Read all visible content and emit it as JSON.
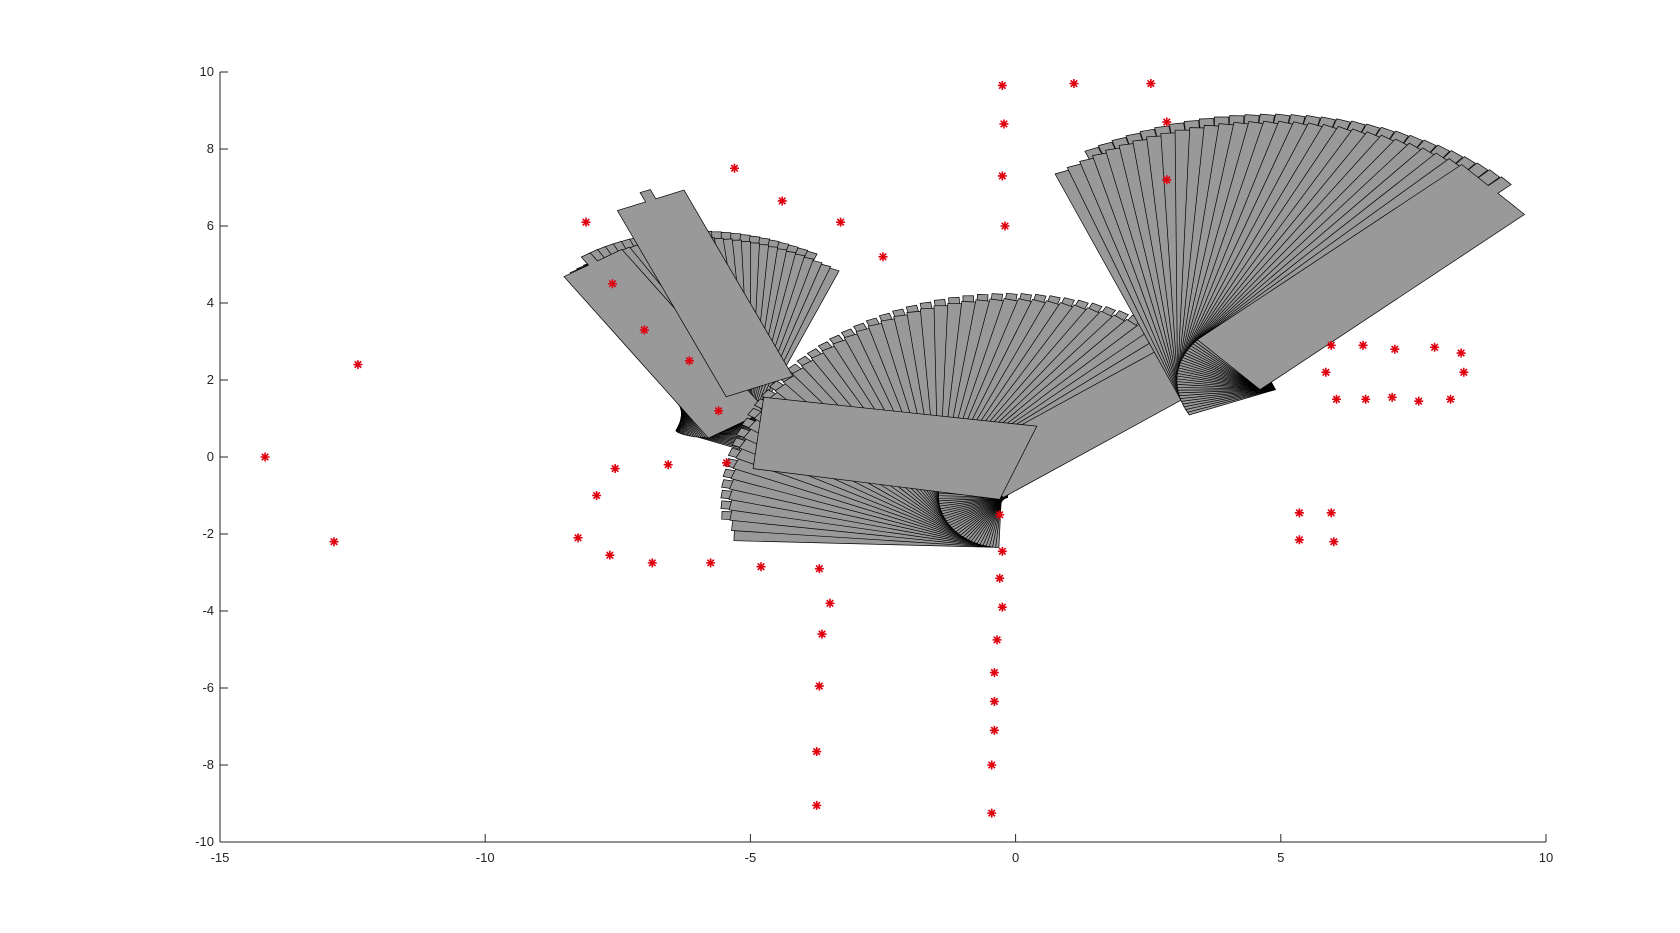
{
  "chart_data": {
    "type": "scatter",
    "title": "",
    "xlabel": "",
    "ylabel": "",
    "xlim": [
      -15,
      10
    ],
    "ylim": [
      -10,
      10
    ],
    "grid": false,
    "xticks": [
      -15,
      -10,
      -5,
      0,
      5,
      10
    ],
    "yticks": [
      -10,
      -8,
      -6,
      -4,
      -2,
      0,
      2,
      4,
      6,
      8,
      10
    ],
    "xtick_labels": [
      "-15",
      "-10",
      "-5",
      "0",
      "5",
      "10"
    ],
    "ytick_labels": [
      "-10",
      "-8",
      "-6",
      "-4",
      "-2",
      "0",
      "2",
      "4",
      "6",
      "8",
      "10"
    ],
    "marker_color": "#e0000f",
    "shape_fill": "#999999",
    "shape_edge": "#000000",
    "points": [
      {
        "x": -14.15,
        "y": 0.0
      },
      {
        "x": -12.4,
        "y": 2.4
      },
      {
        "x": -12.85,
        "y": -2.2
      },
      {
        "x": -8.1,
        "y": 6.1
      },
      {
        "x": -7.6,
        "y": 4.5
      },
      {
        "x": -7.0,
        "y": 3.3
      },
      {
        "x": -6.15,
        "y": 2.5
      },
      {
        "x": -5.6,
        "y": 1.2
      },
      {
        "x": -5.45,
        "y": -0.15
      },
      {
        "x": -6.55,
        "y": -0.2
      },
      {
        "x": -7.55,
        "y": -0.3
      },
      {
        "x": -7.9,
        "y": -1.0
      },
      {
        "x": -8.25,
        "y": -2.1
      },
      {
        "x": -7.65,
        "y": -2.55
      },
      {
        "x": -6.85,
        "y": -2.75
      },
      {
        "x": -5.75,
        "y": -2.75
      },
      {
        "x": -4.8,
        "y": -2.85
      },
      {
        "x": -3.7,
        "y": -2.9
      },
      {
        "x": -3.5,
        "y": -3.8
      },
      {
        "x": -3.65,
        "y": -4.6
      },
      {
        "x": -3.7,
        "y": -5.95
      },
      {
        "x": -3.75,
        "y": -7.65
      },
      {
        "x": -3.75,
        "y": -9.05
      },
      {
        "x": -5.3,
        "y": 7.5
      },
      {
        "x": -4.4,
        "y": 6.65
      },
      {
        "x": -3.3,
        "y": 6.1
      },
      {
        "x": -2.5,
        "y": 5.2
      },
      {
        "x": -0.25,
        "y": 9.65
      },
      {
        "x": -0.22,
        "y": 8.65
      },
      {
        "x": -0.25,
        "y": 7.3
      },
      {
        "x": -0.2,
        "y": 6.0
      },
      {
        "x": 1.1,
        "y": 9.7
      },
      {
        "x": 2.55,
        "y": 9.7
      },
      {
        "x": 2.85,
        "y": 8.7
      },
      {
        "x": 2.85,
        "y": 7.2
      },
      {
        "x": -0.3,
        "y": -1.5
      },
      {
        "x": -0.25,
        "y": -2.45
      },
      {
        "x": -0.3,
        "y": -3.15
      },
      {
        "x": -0.25,
        "y": -3.9
      },
      {
        "x": -0.35,
        "y": -4.75
      },
      {
        "x": -0.4,
        "y": -5.6
      },
      {
        "x": -0.4,
        "y": -6.35
      },
      {
        "x": -0.4,
        "y": -7.1
      },
      {
        "x": -0.45,
        "y": -8.0
      },
      {
        "x": -0.45,
        "y": -9.25
      },
      {
        "x": 5.95,
        "y": 2.9
      },
      {
        "x": 6.55,
        "y": 2.9
      },
      {
        "x": 7.15,
        "y": 2.8
      },
      {
        "x": 7.9,
        "y": 2.85
      },
      {
        "x": 8.4,
        "y": 2.7
      },
      {
        "x": 8.45,
        "y": 2.2
      },
      {
        "x": 5.85,
        "y": 2.2
      },
      {
        "x": 6.05,
        "y": 1.5
      },
      {
        "x": 6.6,
        "y": 1.5
      },
      {
        "x": 7.1,
        "y": 1.55
      },
      {
        "x": 7.6,
        "y": 1.45
      },
      {
        "x": 8.2,
        "y": 1.5
      },
      {
        "x": 5.35,
        "y": -1.45
      },
      {
        "x": 5.95,
        "y": -1.45
      },
      {
        "x": 5.35,
        "y": -2.15
      },
      {
        "x": 6.0,
        "y": -2.2
      }
    ]
  }
}
